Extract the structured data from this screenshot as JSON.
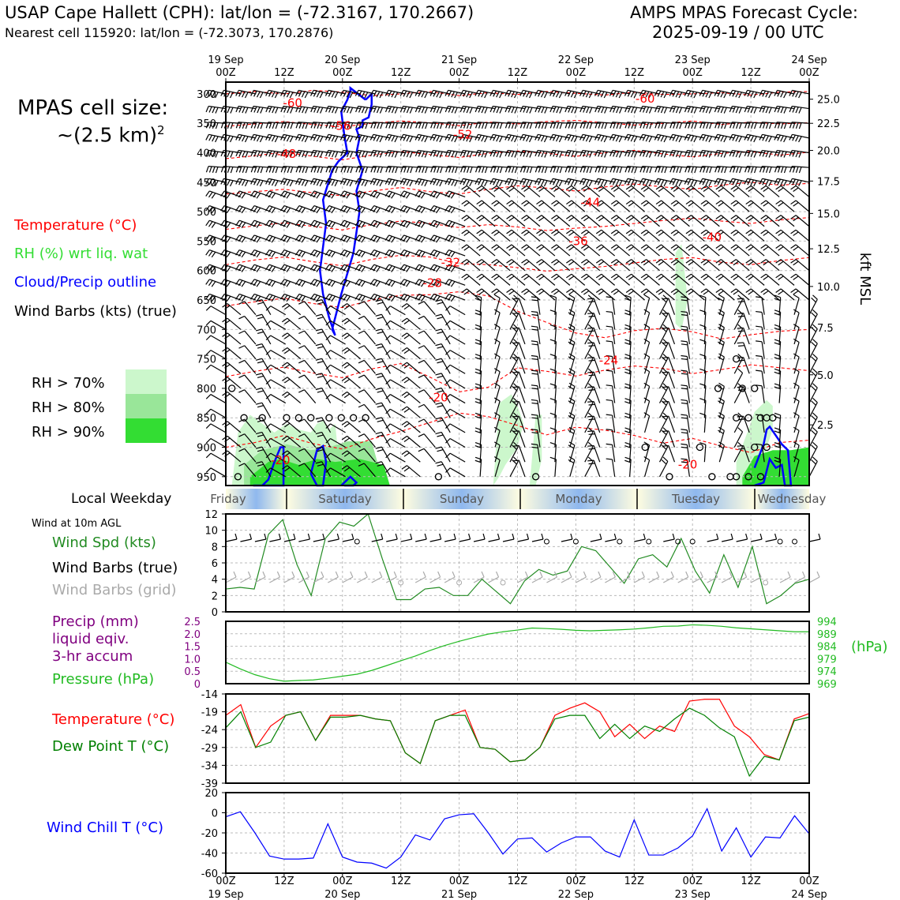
{
  "header": {
    "left_line1": "USAP Cape Hallett (CPH): lat/lon = (-72.3167, 170.2667)",
    "left_line2": "Nearest cell 115920: lat/lon = (-72.3073, 170.2876)",
    "right_line1": "AMPS MPAS Forecast Cycle:",
    "right_line2": "2025-09-19 / 00 UTC"
  },
  "cell_size": {
    "title": "MPAS cell size:",
    "value": "~(2.5 km)",
    "exponent": "2"
  },
  "legend": {
    "temperature": "Temperature (°C)",
    "rh": "RH (%) wrt liq. wat",
    "cloud": "Cloud/Precip outline",
    "wind": "Wind Barbs (kts) (true)",
    "rh70": "RH > 70%",
    "rh80": "RH > 80%",
    "rh90": "RH > 90%"
  },
  "colors": {
    "temperature": "#ff0000",
    "rh": "#33dd33",
    "cloud": "#0000ff",
    "rh70": "#ccf7cc",
    "rh80": "#99e699",
    "rh90": "#33dd33",
    "pressure": "#22bb22",
    "precip": "#800080",
    "windspd": "#228b22",
    "dewpoint": "#008000",
    "windchill": "#0000ff",
    "grid_barbs": "#aaaaaa"
  },
  "time_axis": {
    "top_labels": [
      {
        "top": "19 Sep",
        "bottom": "00Z"
      },
      {
        "top": "",
        "bottom": "12Z"
      },
      {
        "top": "20 Sep",
        "bottom": "00Z"
      },
      {
        "top": "",
        "bottom": "12Z"
      },
      {
        "top": "21 Sep",
        "bottom": "00Z"
      },
      {
        "top": "",
        "bottom": "12Z"
      },
      {
        "top": "22 Sep",
        "bottom": "00Z"
      },
      {
        "top": "",
        "bottom": "12Z"
      },
      {
        "top": "23 Sep",
        "bottom": "00Z"
      },
      {
        "top": "",
        "bottom": "12Z"
      },
      {
        "top": "24 Sep",
        "bottom": "00Z"
      }
    ]
  },
  "weekday": {
    "label": "Local Weekday",
    "days": [
      "Friday",
      "Saturday",
      "Sunday",
      "Monday",
      "Tuesday",
      "Wednesday"
    ]
  },
  "side_labels": {
    "wind10m": "Wind at 10m AGL",
    "windspd": "Wind Spd (kts)",
    "windbarbs": "Wind Barbs (true)",
    "windbarbs_grid": "Wind Barbs (grid)",
    "precip1": "Precip (mm)",
    "precip2": "liquid eqiv.",
    "precip3": "3-hr accum",
    "pressure": "Pressure (hPa)",
    "temp": "Temperature (°C)",
    "dewpoint": "Dew Point T (°C)",
    "windchill": "Wind Chill T (°C)",
    "hpa_unit": "(hPa)",
    "kft": "kft MSL"
  },
  "chart_data": [
    {
      "type": "line",
      "name": "cross-section",
      "y_pressure_ticks": [
        300,
        350,
        400,
        450,
        500,
        550,
        600,
        650,
        700,
        750,
        800,
        850,
        900,
        950
      ],
      "y_kft_ticks": [
        "25.0",
        "22.5",
        "20.0",
        "17.5",
        "15.0",
        "12.5",
        "10.0",
        "7.5",
        "5.0",
        "2.5"
      ],
      "y_kft_pressures": [
        309,
        350,
        396,
        448,
        503,
        563,
        627,
        697,
        777,
        862
      ],
      "ylim": [
        280,
        965
      ],
      "temperature_labels": [
        {
          "t": 11,
          "p": 318,
          "v": "-60"
        },
        {
          "t": 69,
          "p": 311,
          "v": "-60"
        },
        {
          "t": 19,
          "p": 357,
          "v": "-56"
        },
        {
          "t": 39,
          "p": 372,
          "v": "-52"
        },
        {
          "t": 10,
          "p": 405,
          "v": "-48"
        },
        {
          "t": 60,
          "p": 487,
          "v": "-44"
        },
        {
          "t": 58,
          "p": 553,
          "v": "-36"
        },
        {
          "t": 80,
          "p": 546,
          "v": "-40"
        },
        {
          "t": 37,
          "p": 589,
          "v": "-32"
        },
        {
          "t": 34,
          "p": 624,
          "v": "-28"
        },
        {
          "t": 63,
          "p": 755,
          "v": "-24"
        },
        {
          "t": 35,
          "p": 818,
          "v": "-20"
        },
        {
          "t": 9,
          "p": 925,
          "v": "-20"
        },
        {
          "t": 76,
          "p": 932,
          "v": "-20"
        }
      ],
      "isotherms": [
        [
          300,
          296,
          300,
          294,
          297,
          303,
          300,
          296,
          303,
          298,
          301,
          296,
          299,
          302,
          297,
          301,
          300,
          298,
          302,
          297,
          296
        ],
        [
          355,
          351,
          347,
          352,
          356,
          350,
          346,
          349,
          354,
          348,
          351,
          347,
          345,
          349,
          353,
          350,
          346,
          352,
          348,
          351,
          349
        ],
        [
          410,
          405,
          399,
          406,
          412,
          404,
          398,
          403,
          408,
          401,
          397,
          401,
          406,
          400,
          396,
          402,
          407,
          401,
          398,
          404,
          399
        ],
        [
          470,
          466,
          462,
          468,
          473,
          465,
          459,
          466,
          470,
          462,
          456,
          460,
          465,
          458,
          453,
          458,
          462,
          455,
          450,
          455,
          452
        ],
        [
          530,
          524,
          519,
          525,
          531,
          522,
          516,
          520,
          527,
          522,
          526,
          532,
          528,
          525,
          520,
          515,
          511,
          516,
          520,
          514,
          510
        ],
        [
          590,
          582,
          577,
          585,
          592,
          581,
          574,
          577,
          588,
          590,
          595,
          601,
          597,
          593,
          587,
          581,
          578,
          586,
          590,
          583,
          578
        ],
        [
          660,
          653,
          647,
          656,
          663,
          650,
          642,
          641,
          636,
          643,
          669,
          688,
          706,
          714,
          702,
          698,
          704,
          716,
          709,
          703,
          700
        ],
        [
          780,
          771,
          764,
          774,
          782,
          767,
          758,
          781,
          806,
          798,
          765,
          771,
          779,
          769,
          762,
          766,
          775,
          768,
          760,
          765,
          770
        ],
        [
          900,
          892,
          880,
          894,
          903,
          886,
          873,
          858,
          842,
          848,
          863,
          879,
          866,
          871,
          880,
          893,
          885,
          898,
          909,
          892,
          888
        ]
      ],
      "rh_regions": [
        {
          "level": 70,
          "t": [
            1,
            2,
            4,
            6,
            8,
            10,
            12,
            14,
            15,
            16,
            17,
            18,
            19,
            18,
            16,
            14,
            12,
            10,
            8,
            6,
            4,
            2,
            1
          ],
          "p": [
            965,
            875,
            845,
            860,
            875,
            860,
            870,
            875,
            860,
            855,
            870,
            860,
            965,
            965,
            965,
            965,
            965,
            965,
            965,
            965,
            965,
            965,
            965
          ]
        },
        {
          "level": 70,
          "t": [
            44,
            45,
            47,
            48,
            49,
            48,
            46,
            45,
            44
          ],
          "p": [
            965,
            825,
            810,
            830,
            860,
            900,
            930,
            950,
            965
          ]
        },
        {
          "level": 70,
          "t": [
            50,
            51,
            52,
            52,
            51,
            50
          ],
          "p": [
            965,
            845,
            845,
            920,
            965,
            965
          ]
        },
        {
          "level": 70,
          "t": [
            74,
            75,
            76,
            75,
            74
          ],
          "p": [
            570,
            555,
            650,
            700,
            690
          ]
        },
        {
          "level": 70,
          "t": [
            84,
            86,
            87,
            88,
            89,
            90,
            90,
            89,
            88,
            86,
            84
          ],
          "p": [
            925,
            870,
            840,
            830,
            820,
            830,
            870,
            900,
            965,
            965,
            965
          ]
        }
      ],
      "clouds": [
        {
          "t": [
            23.0,
            24.0,
            24.0,
            23.5,
            22.5,
            22.5,
            21.5,
            22.0,
            21.5,
            22.5,
            21.5,
            22.0,
            21.0,
            19.0,
            18.0,
            17.5,
            18.0,
            17.0,
            16.0,
            15.5,
            16.0,
            16.5,
            16.0,
            17.5,
            18.5,
            20.0,
            19.5,
            19.0,
            20.0,
            20.5,
            20.5,
            23.0
          ],
          "p": [
            310,
            300,
            318,
            340,
            345,
            355,
            360,
            375,
            400,
            430,
            465,
            500,
            570,
            640,
            680,
            700,
            710,
            680,
            640,
            600,
            560,
            520,
            480,
            430,
            415,
            400,
            370,
            330,
            310,
            295,
            290,
            310
          ]
        },
        {
          "t": [
            6.0,
            7.0,
            8.0,
            9.0,
            9.5,
            9.5,
            8.5,
            6.0,
            4.5
          ],
          "p": [
            965,
            955,
            925,
            900,
            900,
            965,
            965,
            965,
            965
          ]
        },
        {
          "t": [
            14.0,
            15.0,
            16.0,
            16.5,
            16.0,
            15.0,
            14.5,
            14.0
          ],
          "p": [
            945,
            905,
            898,
            925,
            965,
            965,
            955,
            945
          ]
        },
        {
          "t": [
            19.0,
            20.5,
            21.5,
            21.0,
            19.5
          ],
          "p": [
            965,
            950,
            960,
            965,
            965
          ]
        },
        {
          "t": [
            87.0,
            88.5,
            89.0,
            89.5,
            90.5,
            91.5,
            92.5,
            93.0,
            92.0,
            91.5,
            90.5,
            89.5,
            88.5,
            87.0
          ],
          "p": [
            935,
            895,
            870,
            865,
            880,
            895,
            905,
            965,
            965,
            930,
            935,
            920,
            960,
            965
          ]
        }
      ],
      "wind_barb_rows": [
        300,
        325,
        350,
        375,
        400,
        425,
        450,
        475,
        500,
        525,
        550,
        575,
        600,
        625,
        650,
        675,
        700,
        725,
        750,
        775,
        800,
        825,
        850,
        875,
        900,
        925,
        950
      ],
      "calm_points": [
        {
          "t": 1,
          "p": 800
        },
        {
          "t": 3,
          "p": 850
        },
        {
          "t": 6,
          "p": 850
        },
        {
          "t": 10,
          "p": 850
        },
        {
          "t": 12,
          "p": 850
        },
        {
          "t": 14,
          "p": 850
        },
        {
          "t": 17,
          "p": 850
        },
        {
          "t": 19,
          "p": 850
        },
        {
          "t": 21,
          "p": 850
        },
        {
          "t": 23,
          "p": 850
        },
        {
          "t": 2,
          "p": 950
        },
        {
          "t": 35,
          "p": 950
        },
        {
          "t": 73,
          "p": 950
        },
        {
          "t": 80,
          "p": 950
        },
        {
          "t": 83,
          "p": 950
        },
        {
          "t": 51,
          "p": 950
        },
        {
          "t": 69,
          "p": 900
        },
        {
          "t": 81,
          "p": 800
        },
        {
          "t": 85,
          "p": 800
        },
        {
          "t": 87,
          "p": 800
        },
        {
          "t": 84,
          "p": 850
        },
        {
          "t": 86,
          "p": 850
        },
        {
          "t": 88,
          "p": 850
        },
        {
          "t": 89,
          "p": 850
        },
        {
          "t": 90,
          "p": 850
        },
        {
          "t": 87,
          "p": 900
        },
        {
          "t": 89,
          "p": 900
        },
        {
          "t": 84,
          "p": 950
        },
        {
          "t": 86,
          "p": 950
        },
        {
          "t": 88,
          "p": 950
        },
        {
          "t": 84,
          "p": 750
        },
        {
          "t": 78,
          "p": 900
        }
      ]
    },
    {
      "type": "line",
      "name": "wind10m",
      "ylim": [
        0,
        12
      ],
      "y_ticks": [
        0,
        2,
        4,
        6,
        8,
        10,
        12
      ],
      "x_hours": [
        0,
        6,
        12,
        18,
        24,
        30,
        36,
        42,
        48,
        54,
        60,
        66,
        72,
        78,
        84,
        90,
        96,
        102,
        108,
        114,
        120
      ],
      "wind_speed": [
        2.8,
        3.0,
        2.8,
        9.5,
        11.3,
        5.8,
        2.0,
        9.0,
        11.0,
        10.5,
        12.0,
        6.5,
        1.5,
        1.5,
        2.8,
        3.0,
        2.0,
        2.0,
        4.0,
        2.5,
        1.0,
        3.8,
        5.2,
        4.5,
        5.0,
        8.0,
        7.5,
        5.5,
        3.5,
        6.5,
        7.0,
        5.5,
        9.0,
        5.0,
        2.3,
        7.0,
        3.0,
        8.0,
        1.0,
        2.0,
        3.5,
        4.0
      ]
    },
    {
      "type": "line",
      "name": "precip_pressure",
      "precip_ticks": [
        "2.5",
        "2.0",
        "1.5",
        "1.0",
        "0.5",
        "0"
      ],
      "pressure_ticks": [
        "994",
        "989",
        "984",
        "979",
        "974",
        "969"
      ],
      "ylim_precip": [
        0,
        2.5
      ],
      "ylim_pressure": [
        969,
        994
      ],
      "precip": [],
      "pressure": [
        977.6,
        974.9,
        972.6,
        971.0,
        970.0,
        970.3,
        970.5,
        971.2,
        972.0,
        972.8,
        974.3,
        976.2,
        978.2,
        980.1,
        982.3,
        984.3,
        986.0,
        987.5,
        988.9,
        989.8,
        990.5,
        991.3,
        991.1,
        990.8,
        990.4,
        990.2,
        990.4,
        990.6,
        990.9,
        991.4,
        992.0,
        992.1,
        992.6,
        992.4,
        992.0,
        991.4,
        991.0,
        990.6,
        990.2,
        989.8,
        989.8
      ]
    },
    {
      "type": "line",
      "name": "temperature_dewpoint",
      "ylim": [
        -39,
        -14
      ],
      "y_ticks": [
        -14,
        -19,
        -24,
        -29,
        -34,
        -39
      ],
      "temperature": [
        -20.0,
        -17.0,
        -29.0,
        -23.0,
        -20.0,
        -19.0,
        -27.0,
        -20.0,
        -20.0,
        -20.0,
        -21.0,
        -21.5,
        -30.5,
        -33.5,
        -21.5,
        -20.0,
        -18.5,
        -29.0,
        -29.5,
        -33.0,
        -32.5,
        -29.0,
        -20.0,
        -18.0,
        -16.5,
        -19.0,
        -26.0,
        -22.5,
        -26.5,
        -23.0,
        -24.5,
        -16.0,
        -15.5,
        -15.5,
        -23.0,
        -26.0,
        -31.0,
        -32.5,
        -21.0,
        -19.5
      ],
      "dewpoint": [
        -23.5,
        -19.0,
        -29.0,
        -27.5,
        -20.0,
        -19.0,
        -27.0,
        -20.5,
        -20.5,
        -20.0,
        -21.0,
        -21.5,
        -30.5,
        -33.5,
        -21.5,
        -20.0,
        -20.0,
        -29.0,
        -29.5,
        -33.0,
        -32.5,
        -29.0,
        -21.0,
        -20.0,
        -20.0,
        -26.5,
        -22.5,
        -26.5,
        -23.0,
        -24.5,
        -21.0,
        -18.0,
        -20.0,
        -23.5,
        -26.0,
        -37.0,
        -31.5,
        -32.5,
        -21.5,
        -20.5
      ]
    },
    {
      "type": "line",
      "name": "windchill",
      "ylim": [
        -60,
        20
      ],
      "y_ticks": [
        20,
        0,
        -20,
        -40,
        -60
      ],
      "windchill": [
        -4,
        1,
        -20,
        -43,
        -46,
        -46,
        -45,
        -11,
        -44,
        -49,
        -50,
        -55,
        -44,
        -22,
        -27,
        -6,
        -2,
        -1,
        -20,
        -41,
        -26,
        -25,
        -39,
        -30,
        -24,
        -24,
        -38,
        -44,
        -7,
        -42,
        -42,
        -35,
        -23,
        4,
        -38,
        -15,
        -44,
        -24,
        -25,
        -3,
        -21
      ]
    }
  ]
}
